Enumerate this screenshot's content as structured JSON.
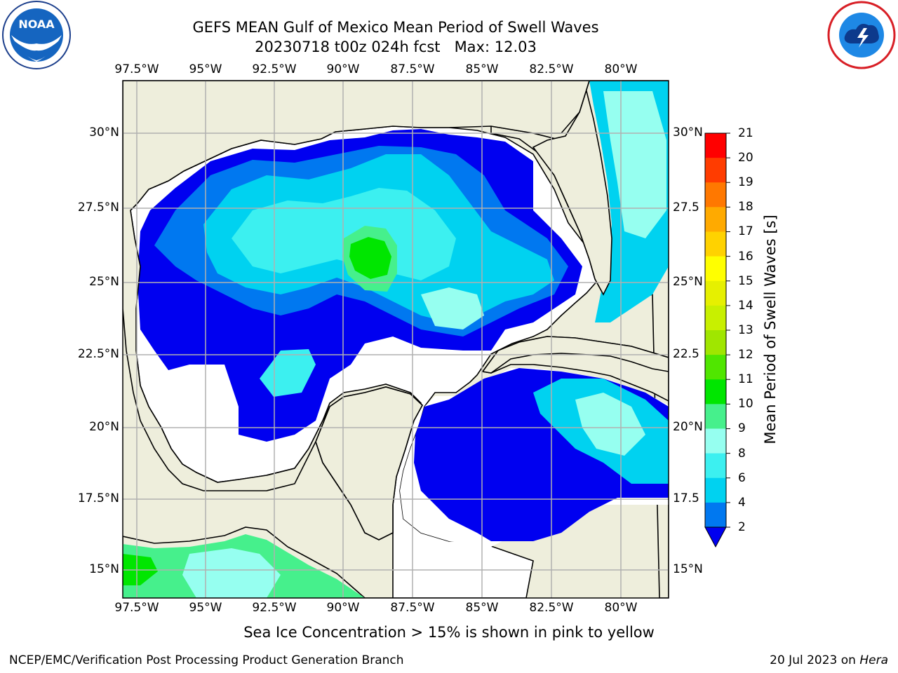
{
  "header": {
    "title_line1": "GEFS MEAN Gulf of Mexico Mean Period of Swell Waves",
    "title_line2": "20230718 t00z 024h fcst   Max: 12.03"
  },
  "logos": {
    "left": "noaa-logo",
    "right": "nws-logo"
  },
  "map": {
    "lon_labels": [
      "97.5°W",
      "95°W",
      "92.5°W",
      "90°W",
      "87.5°W",
      "85°W",
      "82.5°W",
      "80°W"
    ],
    "lat_labels_left": [
      "30°N",
      "27.5°N",
      "25°N",
      "22.5°N",
      "20°N",
      "17.5°N",
      "15°N"
    ],
    "lat_labels_right": [
      "30°N",
      "27.5",
      "25°N",
      "22.5",
      "20°N",
      "17.5",
      "15°N"
    ],
    "colors": {
      "land": "#eeeedc",
      "ocean_nodata": "#ffffff",
      "grid": "#b0b0b0"
    }
  },
  "colorbar": {
    "label": "Mean Period of Swell Waves [s]",
    "ticks": [
      "21",
      "20",
      "19",
      "18",
      "17",
      "16",
      "15",
      "14",
      "13",
      "12",
      "11",
      "10",
      "9",
      "8",
      "6",
      "4",
      "2"
    ],
    "levels": [
      2,
      4,
      6,
      8,
      9,
      10,
      11,
      12,
      13,
      14,
      15,
      16,
      17,
      18,
      19,
      20,
      21
    ],
    "colors": [
      "#0000f0",
      "#0078f0",
      "#00d2f0",
      "#3cf0f0",
      "#96fff0",
      "#46f08c",
      "#00e600",
      "#50e600",
      "#a0e600",
      "#c8f000",
      "#e6f000",
      "#ffff00",
      "#ffd200",
      "#ffaa00",
      "#ff7800",
      "#ff3c00",
      "#ff0000"
    ]
  },
  "footer": {
    "note": "Sea Ice Concentration > 15% is shown in pink to yellow",
    "left": "NCEP/EMC/Verification Post Processing Product Generation Branch",
    "right_prefix": "20 Jul 2023 on ",
    "right_host": "Hera"
  }
}
